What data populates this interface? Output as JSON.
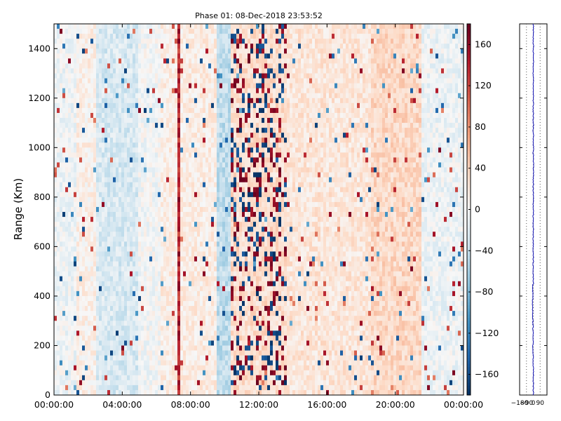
{
  "chart_data": {
    "type": "heatmap",
    "title": "Phase 01: 08-Dec-2018 23:53:52",
    "ylabel": "Range (Km)",
    "xlabel": "",
    "x_ticks": [
      "00:00:00",
      "04:00:00",
      "08:00:00",
      "12:00:00",
      "16:00:00",
      "20:00:00",
      "00:00:00"
    ],
    "x_range_hours": [
      0,
      24
    ],
    "y_ticks": [
      "0",
      "200",
      "400",
      "600",
      "800",
      "1000",
      "1200",
      "1400"
    ],
    "y_range": [
      0,
      1500
    ],
    "colorbar": {
      "colormap": "RdBu_r",
      "range": [
        -180,
        180
      ],
      "ticks": [
        "160",
        "120",
        "80",
        "40",
        "0",
        "−40",
        "−80",
        "−120",
        "−160"
      ],
      "tick_values": [
        160,
        120,
        80,
        40,
        0,
        -40,
        -80,
        -120,
        -160
      ]
    },
    "regions": [
      {
        "start_h": 0.0,
        "end_h": 1.3,
        "mean": -8
      },
      {
        "start_h": 1.3,
        "end_h": 2.4,
        "mean": 10
      },
      {
        "start_h": 2.4,
        "end_h": 5.0,
        "mean": -28
      },
      {
        "start_h": 5.0,
        "end_h": 6.3,
        "mean": -4
      },
      {
        "start_h": 6.3,
        "end_h": 7.2,
        "mean": 14
      },
      {
        "start_h": 7.2,
        "end_h": 7.4,
        "mean": 130
      },
      {
        "start_h": 7.4,
        "end_h": 9.5,
        "mean": 15
      },
      {
        "start_h": 9.5,
        "end_h": 10.4,
        "mean": -45
      },
      {
        "start_h": 10.4,
        "end_h": 13.7,
        "mean": 30
      },
      {
        "start_h": 13.7,
        "end_h": 18.5,
        "mean": 22
      },
      {
        "start_h": 18.5,
        "end_h": 21.5,
        "mean": 35
      },
      {
        "start_h": 21.5,
        "end_h": 24.0,
        "mean": -10
      }
    ],
    "side_panel": {
      "x_ticks": [
        "−180",
        "−90",
        "0",
        "90"
      ],
      "x_tick_values": [
        -180,
        -90,
        0,
        90
      ],
      "x_range": [
        -180,
        180
      ],
      "y_range": [
        0,
        1500
      ],
      "line_color": "#1414b4",
      "profile_mean": 0
    }
  }
}
